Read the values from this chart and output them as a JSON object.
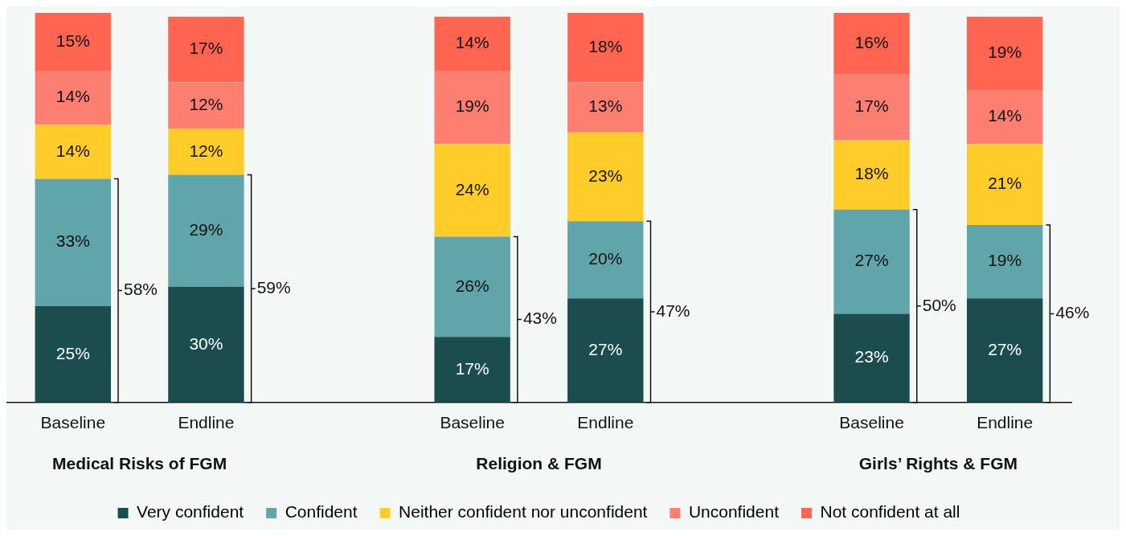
{
  "chart_data": {
    "type": "bar",
    "stacked": true,
    "legend": "bottom",
    "categories": [
      "Baseline",
      "Endline",
      null,
      "Baseline",
      "Endline",
      null,
      "Baseline",
      "Endline"
    ],
    "series": [
      {
        "name": "Very confident",
        "color": "#1b4d4f",
        "values": [
          25,
          30,
          null,
          17,
          27,
          null,
          23,
          27
        ],
        "value_labels": [
          "25%",
          "30%",
          null,
          "17%",
          "27%",
          null,
          "23%",
          "27%"
        ]
      },
      {
        "name": "Confident",
        "color": "#5fa5a9",
        "values": [
          33,
          29,
          null,
          26,
          20,
          null,
          27,
          19
        ],
        "value_labels": [
          "33%",
          "29%",
          null,
          "26%",
          "20%",
          null,
          "27%",
          "19%"
        ]
      },
      {
        "name": "Neither confident nor unconfident",
        "color": "#ffcc29",
        "values": [
          14,
          12,
          null,
          24,
          23,
          null,
          18,
          21
        ],
        "value_labels": [
          "14%",
          "12%",
          null,
          "24%",
          "23%",
          null,
          "18%",
          "21%"
        ]
      },
      {
        "name": "Unconfident",
        "color": "#fd7f72",
        "values": [
          14,
          12,
          null,
          19,
          13,
          null,
          17,
          14
        ],
        "value_labels": [
          "14%",
          "12%",
          null,
          "19%",
          "13%",
          null,
          "17%",
          "14%"
        ]
      },
      {
        "name": "Not confident at all",
        "color": "#ff6550",
        "values": [
          15,
          17,
          null,
          14,
          18,
          null,
          16,
          19
        ],
        "value_labels": [
          "15%",
          "17%",
          null,
          "14%",
          "18%",
          null,
          "16%",
          "19%"
        ]
      }
    ],
    "annotations": [
      "Medical Risks of FGM",
      "Religion & FGM",
      "Girls’ Rights & FGM",
      "58%",
      "59%",
      "43%",
      "47%",
      "50%",
      "46%"
    ]
  }
}
